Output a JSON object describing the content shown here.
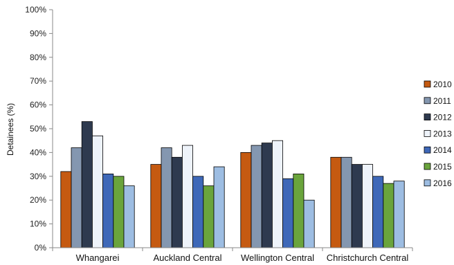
{
  "chart_data": {
    "type": "bar",
    "title": "",
    "xlabel": "",
    "ylabel": "Detainees (%)",
    "ylim": [
      0,
      100
    ],
    "yticks": [
      "0%",
      "10%",
      "20%",
      "30%",
      "40%",
      "50%",
      "60%",
      "70%",
      "80%",
      "90%",
      "100%"
    ],
    "categories": [
      "Whangarei",
      "Auckland Central",
      "Wellington Central",
      "Christchurch Central"
    ],
    "series": [
      {
        "name": "2010",
        "color": "#C55A11",
        "values": [
          32,
          35,
          40,
          38
        ]
      },
      {
        "name": "2011",
        "color": "#8497B0",
        "values": [
          42,
          42,
          43,
          38
        ]
      },
      {
        "name": "2012",
        "color": "#2E3A4F",
        "values": [
          53,
          38,
          44,
          35
        ]
      },
      {
        "name": "2013",
        "color": "#EEF3FA",
        "values": [
          47,
          43,
          45,
          35
        ]
      },
      {
        "name": "2014",
        "color": "#3E68B8",
        "values": [
          31,
          30,
          29,
          30
        ]
      },
      {
        "name": "2015",
        "color": "#6AA43C",
        "values": [
          30,
          26,
          31,
          27
        ]
      },
      {
        "name": "2016",
        "color": "#9DBDE2",
        "values": [
          26,
          34,
          20,
          28
        ]
      }
    ],
    "legend": "right",
    "grid": false
  }
}
